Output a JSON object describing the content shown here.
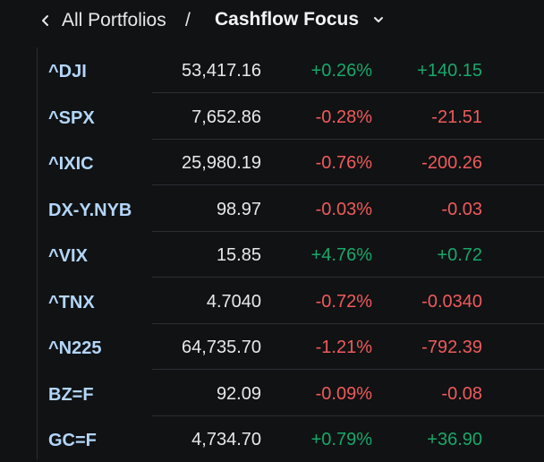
{
  "header": {
    "breadcrumb": "All Portfolios",
    "separator": "/",
    "portfolio_name": "Cashflow Focus",
    "back_icon": "chevron-left-icon",
    "dropdown_icon": "chevron-down-icon"
  },
  "colors": {
    "up": "#18a869",
    "down": "#f05a5a",
    "symbol": "#b3d6f9",
    "background": "#101214"
  },
  "rows": [
    {
      "symbol": "^DJI",
      "price": "53,417.16",
      "change_pct": "+0.26%",
      "change": "+140.15",
      "direction": "up"
    },
    {
      "symbol": "^SPX",
      "price": "7,652.86",
      "change_pct": "-0.28%",
      "change": "-21.51",
      "direction": "down"
    },
    {
      "symbol": "^IXIC",
      "price": "25,980.19",
      "change_pct": "-0.76%",
      "change": "-200.26",
      "direction": "down"
    },
    {
      "symbol": "DX-Y.NYB",
      "price": "98.97",
      "change_pct": "-0.03%",
      "change": "-0.03",
      "direction": "down"
    },
    {
      "symbol": "^VIX",
      "price": "15.85",
      "change_pct": "+4.76%",
      "change": "+0.72",
      "direction": "up"
    },
    {
      "symbol": "^TNX",
      "price": "4.7040",
      "change_pct": "-0.72%",
      "change": "-0.0340",
      "direction": "down"
    },
    {
      "symbol": "^N225",
      "price": "64,735.70",
      "change_pct": "-1.21%",
      "change": "-792.39",
      "direction": "down"
    },
    {
      "symbol": "BZ=F",
      "price": "92.09",
      "change_pct": "-0.09%",
      "change": "-0.08",
      "direction": "down"
    },
    {
      "symbol": "GC=F",
      "price": "4,734.70",
      "change_pct": "+0.79%",
      "change": "+36.90",
      "direction": "up"
    }
  ]
}
